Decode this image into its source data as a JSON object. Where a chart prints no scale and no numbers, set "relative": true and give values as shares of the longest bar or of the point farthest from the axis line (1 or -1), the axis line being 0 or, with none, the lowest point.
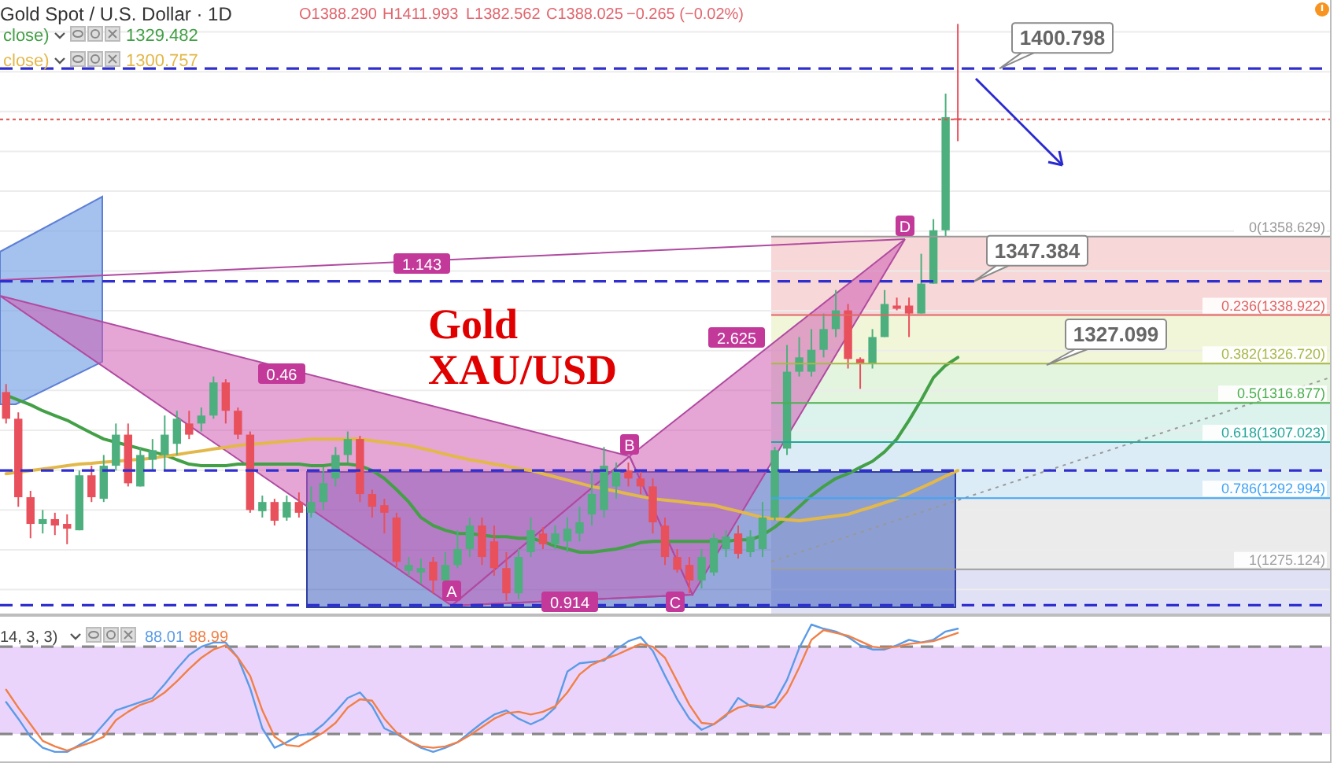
{
  "chart_data": [
    {
      "type": "candlestick",
      "title": "Gold Spot / U.S. Dollar · 1D",
      "categories": [
        null,
        null,
        null,
        null,
        null,
        null,
        null,
        null,
        null,
        null,
        null,
        null,
        null,
        null,
        null,
        null,
        null,
        null,
        null,
        null,
        null,
        null,
        null,
        null,
        null,
        null,
        null,
        null,
        null,
        null,
        null,
        null,
        null,
        null,
        null,
        null,
        null,
        null,
        null,
        null,
        null,
        null,
        null,
        null,
        null,
        null,
        null,
        null,
        null,
        null,
        null,
        null,
        null,
        null,
        null,
        null,
        null,
        null,
        null,
        null,
        null,
        null,
        null,
        null,
        null,
        null,
        null,
        null,
        null,
        null,
        null,
        null,
        null,
        null,
        null,
        null,
        null,
        null,
        null,
        null,
        null,
        null,
        null,
        null,
        null,
        null,
        null,
        null,
        null,
        null,
        null,
        null,
        null,
        null,
        null,
        null,
        null,
        null,
        null,
        null,
        null,
        null,
        null,
        null,
        null,
        null,
        null,
        null,
        null
      ],
      "colors": [
        "#e8505b",
        "#e8505b",
        "#e8505b",
        "#4caf7d",
        "#e8505b",
        "#e8505b",
        "#4caf7d",
        "#e8505b",
        "#4caf7d",
        "#4caf7d",
        "#e8505b",
        "#4caf7d",
        "#4caf7d",
        "#4caf7d",
        "#4caf7d",
        "#e8505b",
        "#4caf7d",
        "#4caf7d",
        "#e8505b",
        "#e8505b",
        "#e8505b",
        "#4caf7d",
        "#e8505b",
        "#4caf7d",
        "#e8505b",
        "#4caf7d",
        "#4caf7d",
        "#4caf7d",
        "#4caf7d",
        "#e8505b",
        "#e8505b",
        "#e8505b",
        "#e8505b",
        "#4caf7d",
        "#4caf7d",
        "#e8505b",
        "#4caf7d",
        "#4caf7d",
        "#4caf7d",
        "#e8505b",
        "#e8505b",
        "#e8505b",
        "#4caf7d",
        "#4caf7d",
        "#e8505b",
        "#4caf7d",
        "#4caf7d",
        "#4caf7d",
        "#4caf7d",
        "#4caf7d",
        "#4caf7d",
        "#e8505b",
        "#e8505b",
        "#e8505b",
        "#e8505b",
        "#e8505b",
        "#e8505b",
        "#4caf7d",
        "#4caf7d",
        "#4caf7d",
        "#e8505b",
        "#4caf7d",
        "#4caf7d",
        "#4caf7d",
        "#4caf7d",
        "#4caf7d",
        "#4caf7d",
        "#4caf7d",
        "#4caf7d",
        "#e8505b",
        "#e8505b",
        "#4caf7d",
        "#4caf7d",
        "#e8505b",
        "#e8505b",
        "#4caf7d",
        "#4caf7d",
        "#4caf7d",
        "#e8505b",
        null,
        null,
        null,
        null,
        null,
        null,
        null,
        null,
        null,
        null,
        null,
        null,
        null,
        null,
        null,
        null,
        null,
        null,
        null,
        null,
        null,
        null,
        null,
        null,
        null,
        null,
        null,
        null,
        null,
        null
      ],
      "ohlc": [
        [
          1319.6,
          1321.6,
          1311.7,
          1312.9
        ],
        [
          1312.9,
          1314.5,
          1290.8,
          1293.2
        ],
        [
          1293.2,
          1294.8,
          1282.9,
          1286.5
        ],
        [
          1286.5,
          1290.0,
          1284.1,
          1287.7
        ],
        [
          1287.7,
          1289.3,
          1283.7,
          1286.1
        ],
        [
          1286.5,
          1288.9,
          1281.4,
          1285.3
        ],
        [
          1284.9,
          1299.9,
          1284.9,
          1298.7
        ],
        [
          1298.7,
          1301.1,
          1292.0,
          1293.2
        ],
        [
          1292.8,
          1303.8,
          1292.0,
          1301.1
        ],
        [
          1301.1,
          1311.7,
          1299.9,
          1308.9
        ],
        [
          1308.9,
          1311.7,
          1295.9,
          1296.7
        ],
        [
          1295.9,
          1305.8,
          1295.9,
          1303.8
        ],
        [
          1302.6,
          1307.8,
          1299.9,
          1305.0
        ],
        [
          1303.8,
          1313.7,
          1299.9,
          1308.9
        ],
        [
          1306.6,
          1314.9,
          1303.8,
          1312.9
        ],
        [
          1311.7,
          1314.9,
          1307.8,
          1308.9
        ],
        [
          1311.7,
          1315.7,
          1309.7,
          1313.7
        ],
        [
          1313.7,
          1323.5,
          1312.9,
          1322.0
        ],
        [
          1322.0,
          1322.8,
          1311.7,
          1314.9
        ],
        [
          1314.9,
          1315.7,
          1307.8,
          1308.9
        ],
        [
          1308.9,
          1309.7,
          1289.3,
          1290.0
        ],
        [
          1289.7,
          1293.6,
          1288.1,
          1292.0
        ],
        [
          1292.0,
          1292.8,
          1286.1,
          1287.3
        ],
        [
          1288.1,
          1293.6,
          1287.3,
          1292.0
        ],
        [
          1292.0,
          1294.4,
          1288.1,
          1289.3
        ],
        [
          1289.3,
          1295.9,
          1288.1,
          1292.0
        ],
        [
          1292.0,
          1300.7,
          1290.0,
          1296.7
        ],
        [
          1297.9,
          1305.8,
          1295.9,
          1303.8
        ],
        [
          1303.8,
          1309.7,
          1301.9,
          1307.8
        ],
        [
          1307.8,
          1308.6,
          1292.0,
          1294.0
        ],
        [
          1294.0,
          1295.1,
          1288.1,
          1290.8
        ],
        [
          1291.2,
          1292.8,
          1284.1,
          1289.3
        ],
        [
          1288.1,
          1289.3,
          1275.4,
          1277.0
        ],
        [
          1274.7,
          1278.2,
          1273.5,
          1276.2
        ],
        [
          1274.3,
          1277.8,
          1271.5,
          1275.4
        ],
        [
          1277.0,
          1278.2,
          1269.1,
          1272.3
        ],
        [
          1272.3,
          1279.4,
          1271.5,
          1276.2
        ],
        [
          1276.2,
          1284.9,
          1275.4,
          1280.2
        ],
        [
          1280.2,
          1288.1,
          1278.2,
          1286.1
        ],
        [
          1286.1,
          1288.1,
          1276.2,
          1278.2
        ],
        [
          1282.1,
          1286.1,
          1273.5,
          1275.4
        ],
        [
          1275.4,
          1279.4,
          1267.2,
          1269.1
        ],
        [
          1269.1,
          1280.2,
          1267.6,
          1278.2
        ],
        [
          1279.4,
          1288.1,
          1278.2,
          1284.9
        ],
        [
          1284.1,
          1285.7,
          1280.2,
          1281.4
        ],
        [
          1281.4,
          1286.1,
          1280.2,
          1284.1
        ],
        [
          1282.1,
          1288.1,
          1279.4,
          1285.3
        ],
        [
          1284.1,
          1290.8,
          1282.1,
          1286.9
        ],
        [
          1288.9,
          1299.9,
          1286.1,
          1294.0
        ],
        [
          1290.0,
          1305.8,
          1288.1,
          1301.1
        ],
        [
          1295.9,
          1301.9,
          1292.8,
          1299.9
        ],
        [
          1299.9,
          1301.9,
          1295.9,
          1297.9
        ],
        [
          1297.9,
          1299.9,
          1294.0,
          1295.9
        ],
        [
          1295.9,
          1297.9,
          1284.1,
          1286.9
        ],
        [
          1286.1,
          1288.1,
          1276.2,
          1278.2
        ],
        [
          1278.2,
          1280.2,
          1274.3,
          1275.0
        ],
        [
          1276.2,
          1278.2,
          1269.1,
          1272.3
        ],
        [
          1272.3,
          1280.2,
          1270.3,
          1278.2
        ],
        [
          1274.3,
          1284.1,
          1273.5,
          1282.9
        ],
        [
          1280.2,
          1284.9,
          1278.2,
          1283.3
        ],
        [
          1284.1,
          1286.1,
          1277.8,
          1279.0
        ],
        [
          1279.4,
          1284.9,
          1278.2,
          1283.3
        ],
        [
          1280.2,
          1292.0,
          1278.2,
          1288.1
        ],
        [
          1288.1,
          1305.8,
          1287.3,
          1305.0
        ],
        [
          1305.4,
          1331.4,
          1303.8,
          1324.7
        ],
        [
          1324.7,
          1333.4,
          1323.5,
          1328.3
        ],
        [
          1324.7,
          1335.4,
          1323.5,
          1330.2
        ],
        [
          1330.2,
          1339.3,
          1328.3,
          1335.4
        ],
        [
          1335.4,
          1345.2,
          1333.4,
          1340.1
        ],
        [
          1340.1,
          1341.7,
          1325.5,
          1327.9
        ],
        [
          1327.9,
          1328.3,
          1320.4,
          1326.7
        ],
        [
          1326.7,
          1335.4,
          1325.5,
          1333.4
        ],
        [
          1333.4,
          1345.2,
          1333.4,
          1341.7
        ],
        [
          1341.3,
          1343.3,
          1340.1,
          1340.5
        ],
        [
          1341.3,
          1343.3,
          1333.4,
          1339.3
        ],
        [
          1339.3,
          1354.3,
          1339.3,
          1346.8
        ],
        [
          1346.8,
          1363.0,
          1346.8,
          1360.2
        ],
        [
          1360.2,
          1394.5,
          1358.6,
          1388.6
        ],
        [
          1388.29,
          1411.993,
          1382.562,
          1388.025
        ],
        null,
        null,
        null,
        null,
        null,
        null,
        null,
        null,
        null,
        null,
        null,
        null,
        null,
        null,
        null,
        null,
        null,
        null,
        null,
        null,
        null,
        null,
        null,
        null,
        null,
        null,
        null,
        null,
        null,
        null
      ],
      "series": [
        {
          "type": "line",
          "name": "close)",
          "color": "#43a047",
          "values": [
            1318.8,
            1317.6,
            1316.4,
            1314.9,
            1313.7,
            1312.5,
            1310.9,
            1309.3,
            1307.8,
            1307.0,
            1306.2,
            1305.4,
            1304.6,
            1303.8,
            1302.6,
            1301.5,
            1301.1,
            1301.1,
            1301.1,
            1301.5,
            1301.5,
            1301.5,
            1301.5,
            1301.5,
            1301.5,
            1301.1,
            1301.1,
            1301.5,
            1301.5,
            1301.1,
            1299.9,
            1297.9,
            1295.1,
            1292.0,
            1288.1,
            1286.1,
            1284.9,
            1284.1,
            1284.1,
            1283.7,
            1283.3,
            1283.3,
            1282.9,
            1282.9,
            1282.1,
            1280.9,
            1280.2,
            1279.4,
            1279.4,
            1279.8,
            1280.2,
            1280.9,
            1281.8,
            1282.1,
            1282.1,
            1282.1,
            1282.1,
            1282.1,
            1282.1,
            1282.1,
            1282.5,
            1282.5,
            1283.7,
            1285.7,
            1288.1,
            1290.8,
            1293.6,
            1295.9,
            1297.9,
            1299.1,
            1300.7,
            1302.2,
            1304.6,
            1307.8,
            1312.5,
            1317.6,
            1323.2,
            1326.3,
            1328.3,
            null,
            null,
            null,
            null,
            null,
            null,
            null,
            null,
            null,
            null,
            null,
            null,
            null,
            null,
            null,
            null,
            null,
            null,
            null,
            null,
            null,
            null,
            null,
            null,
            null,
            null,
            null,
            null,
            null,
            null
          ]
        },
        {
          "type": "line",
          "name": "close)",
          "color": "#e3b84a",
          "values": [
            1299.1,
            1299.5,
            1299.9,
            1300.3,
            1300.7,
            1301.1,
            1301.5,
            1301.7,
            1302.0,
            1302.2,
            1302.5,
            1302.7,
            1303.0,
            1303.5,
            1303.9,
            1304.4,
            1304.8,
            1305.3,
            1305.7,
            1306.2,
            1306.5,
            1306.7,
            1307.0,
            1307.3,
            1307.5,
            1307.8,
            1307.8,
            1307.8,
            1307.8,
            1307.8,
            1307.4,
            1307.0,
            1306.6,
            1306.2,
            1305.5,
            1304.8,
            1304.0,
            1303.3,
            1302.6,
            1302.1,
            1301.5,
            1301.0,
            1300.4,
            1299.9,
            1299.1,
            1298.3,
            1297.5,
            1296.7,
            1295.9,
            1295.3,
            1294.7,
            1294.0,
            1293.4,
            1292.8,
            1292.5,
            1292.2,
            1291.8,
            1291.5,
            1291.2,
            1290.4,
            1289.7,
            1288.9,
            1288.1,
            1287.8,
            1287.6,
            1287.3,
            1287.7,
            1288.1,
            1288.5,
            1288.9,
            1289.9,
            1290.8,
            1291.8,
            1292.8,
            1294.2,
            1295.6,
            1297.0,
            1298.5,
            1299.9,
            null,
            null,
            null,
            null,
            null,
            null,
            null,
            null,
            null,
            null,
            null,
            null,
            null,
            null,
            null,
            null,
            null,
            null,
            null,
            null,
            null,
            null,
            null,
            null,
            null,
            null,
            null,
            null,
            null,
            null
          ]
        }
      ],
      "ylim": [
        1264,
        1418
      ],
      "yticks": [
        {
          "value": 1270,
          "label": null
        },
        {
          "value": 1280,
          "label": null
        },
        {
          "value": 1290,
          "label": null
        },
        {
          "value": 1300,
          "label": null
        },
        {
          "value": 1310,
          "label": null
        },
        {
          "value": 1320,
          "label": null
        },
        {
          "value": 1330,
          "label": null
        },
        {
          "value": 1340,
          "label": null
        },
        {
          "value": 1350,
          "label": null
        },
        {
          "value": 1360,
          "label": null
        },
        {
          "value": 1370,
          "label": null
        },
        {
          "value": 1380,
          "label": null
        },
        {
          "value": 1390,
          "label": null
        },
        {
          "value": 1400,
          "label": null
        },
        {
          "value": 1410,
          "label": null
        }
      ],
      "grid": "y",
      "legend": "top left",
      "bands": [
        {
          "axis": "y",
          "from": 1338.922,
          "to": 1358.629,
          "color": "#f6d0d0"
        },
        {
          "axis": "y",
          "from": 1326.72,
          "to": 1338.922,
          "color": "#eef4d2"
        },
        {
          "axis": "y",
          "from": 1316.877,
          "to": 1326.72,
          "color": "#def2d9"
        },
        {
          "axis": "y",
          "from": 1307.023,
          "to": 1316.877,
          "color": "#d6f0ea"
        },
        {
          "axis": "y",
          "from": 1292.994,
          "to": 1307.023,
          "color": "#d6e9f6"
        },
        {
          "axis": "y",
          "from": 1275.124,
          "to": 1292.994,
          "color": "#e8e8e8"
        },
        {
          "axis": "y",
          "from": 1264,
          "to": 1275.124,
          "color": "#dcdcf5"
        }
      ],
      "ref_lines": [
        {
          "axis": "y",
          "value": 1358.629,
          "label": "0(1358.629)",
          "color": "#999999",
          "line_style": "solid"
        },
        {
          "axis": "y",
          "value": 1338.922,
          "label": "0.236(1338.922)",
          "color": "#e06666",
          "line_style": "solid"
        },
        {
          "axis": "y",
          "value": 1326.72,
          "label": "0.382(1326.720)",
          "color": "#a8b84a",
          "line_style": "solid"
        },
        {
          "axis": "y",
          "value": 1316.877,
          "label": "0.5(1316.877)",
          "color": "#4caf50",
          "line_style": "solid"
        },
        {
          "axis": "y",
          "value": 1307.023,
          "label": "0.618(1307.023)",
          "color": "#26a69a",
          "line_style": "solid"
        },
        {
          "axis": "y",
          "value": 1292.994,
          "label": "0.786(1292.994)",
          "color": "#42a5f5",
          "line_style": "solid"
        },
        {
          "axis": "y",
          "value": 1275.124,
          "label": "1(1275.124)",
          "color": "#9e9e9e",
          "line_style": "solid"
        },
        {
          "axis": "y",
          "value": 1400.798,
          "label": "1400.798",
          "color": "#2f2fd0",
          "line_style": "dashed"
        },
        {
          "axis": "y",
          "value": 1347.384,
          "label": "1347.384",
          "color": "#2f2fd0",
          "line_style": "dashed"
        },
        {
          "axis": "y",
          "value": 1299.9,
          "color": "#2f2fd0",
          "line_style": "dashed"
        },
        {
          "axis": "y",
          "value": 1266.1,
          "color": "#2f2fd0",
          "line_style": "dashed"
        },
        {
          "axis": "y",
          "value": 1388.025,
          "color": "#d9534f",
          "line_style": "dotted"
        }
      ],
      "annotations": [
        "O1388.290",
        "H1411.993",
        "L1382.562",
        "C1388.025",
        "−0.265 (−0.02%)",
        "1329.482",
        "1300.757",
        "Gold",
        "XAU/USD",
        "1.143",
        "0.46",
        "0.914",
        "2.625",
        "A",
        "B",
        "C",
        "D",
        "1327.099"
      ]
    },
    {
      "type": "line",
      "categories": [
        null,
        null,
        null,
        null,
        null,
        null,
        null,
        null,
        null,
        null,
        null,
        null,
        null,
        null,
        null,
        null,
        null,
        null,
        null,
        null,
        null,
        null,
        null,
        null,
        null,
        null,
        null,
        null,
        null,
        null,
        null,
        null,
        null,
        null,
        null,
        null,
        null,
        null,
        null,
        null,
        null,
        null,
        null,
        null,
        null,
        null,
        null,
        null,
        null,
        null,
        null,
        null,
        null,
        null,
        null,
        null,
        null,
        null,
        null,
        null,
        null,
        null,
        null,
        null,
        null,
        null,
        null,
        null,
        null,
        null,
        null,
        null,
        null,
        null,
        null,
        null,
        null,
        null,
        null,
        null,
        null,
        null,
        null,
        null,
        null,
        null,
        null,
        null,
        null,
        null,
        null,
        null,
        null,
        null,
        null,
        null,
        null,
        null,
        null,
        null,
        null,
        null,
        null,
        null,
        null,
        null,
        null,
        null,
        null
      ],
      "series": [
        {
          "color": "#5b9be6",
          "values": [
            0.44,
            0.32,
            0.19,
            0.11,
            0.08,
            0.08,
            0.13,
            0.18,
            0.28,
            0.38,
            0.41,
            0.44,
            0.47,
            0.57,
            0.68,
            0.78,
            0.84,
            0.87,
            0.87,
            0.76,
            0.54,
            0.25,
            0.11,
            0.15,
            0.2,
            0.21,
            0.28,
            0.37,
            0.47,
            0.51,
            0.41,
            0.25,
            0.21,
            0.16,
            0.11,
            0.08,
            0.11,
            0.15,
            0.22,
            0.29,
            0.35,
            0.38,
            0.32,
            0.28,
            0.32,
            0.4,
            0.66,
            0.72,
            0.73,
            0.74,
            0.82,
            0.88,
            0.91,
            0.81,
            0.63,
            0.46,
            0.32,
            0.24,
            0.28,
            0.34,
            0.47,
            0.41,
            0.4,
            0.44,
            0.6,
            0.83,
            1,
            0.97,
            0.95,
            0.91,
            0.85,
            0.82,
            0.82,
            0.85,
            0.89,
            0.87,
            0.89,
            0.95,
            0.97,
            null,
            null,
            null,
            null,
            null,
            null,
            null,
            null,
            null,
            null,
            null,
            null,
            null,
            null,
            null,
            null,
            null,
            null,
            null,
            null,
            null,
            null,
            null,
            null,
            null,
            null,
            null,
            null,
            null,
            null
          ]
        },
        {
          "color": "#f08048",
          "values": [
            0.53,
            0.4,
            0.28,
            0.16,
            0.12,
            0.09,
            0.12,
            0.15,
            0.19,
            0.31,
            0.37,
            0.42,
            0.45,
            0.51,
            0.59,
            0.68,
            0.76,
            0.82,
            0.85,
            0.76,
            0.63,
            0.38,
            0.19,
            0.13,
            0.12,
            0.17,
            0.22,
            0.29,
            0.4,
            0.46,
            0.45,
            0.32,
            0.22,
            0.16,
            0.12,
            0.11,
            0.12,
            0.15,
            0.2,
            0.26,
            0.32,
            0.36,
            0.37,
            0.35,
            0.37,
            0.41,
            0.51,
            0.64,
            0.71,
            0.75,
            0.78,
            0.82,
            0.86,
            0.84,
            0.76,
            0.59,
            0.42,
            0.29,
            0.28,
            0.35,
            0.4,
            0.42,
            0.41,
            0.4,
            0.51,
            0.69,
            0.89,
            0.96,
            0.94,
            0.92,
            0.88,
            0.84,
            0.83,
            0.84,
            0.86,
            0.87,
            0.88,
            0.91,
            0.94,
            null,
            null,
            null,
            null,
            null,
            null,
            null,
            null,
            null,
            null,
            null,
            null,
            null,
            null,
            null,
            null,
            null,
            null,
            null,
            null,
            null,
            null,
            null,
            null,
            null,
            null,
            null,
            null,
            null,
            null
          ]
        }
      ],
      "relative": true,
      "bands": [
        {
          "axis": "y",
          "from": 0.21,
          "to": 0.84,
          "color": "#e8ccfa"
        }
      ],
      "ref_lines": [
        {
          "axis": "y",
          "value": 0.84,
          "color": "#888888",
          "line_style": "dashed"
        },
        {
          "axis": "y",
          "value": 0.21,
          "color": "#888888",
          "line_style": "dashed"
        }
      ],
      "annotations": [
        "14, 3, 3)",
        "88.01",
        "88.99"
      ]
    }
  ]
}
